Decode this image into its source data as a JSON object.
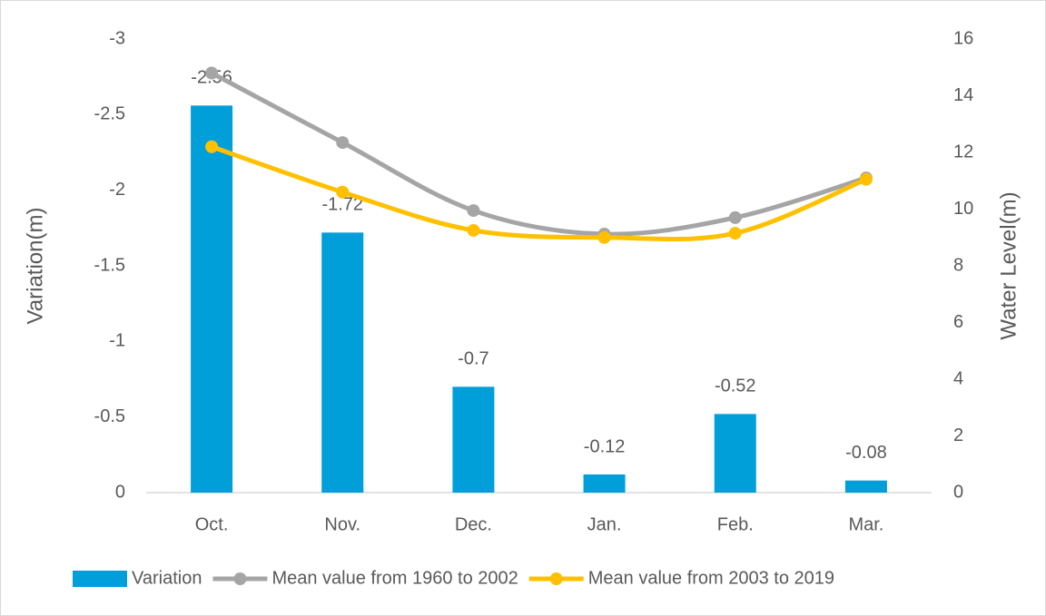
{
  "chart_data": {
    "type": "bar_line",
    "categories": [
      "Oct.",
      "Nov.",
      "Dec.",
      "Jan.",
      "Feb.",
      "Mar."
    ],
    "ylabel": "Variation(m)",
    "y2label": "Water Level(m)",
    "ylim": [
      0,
      -3
    ],
    "yticks": [
      0,
      -0.5,
      -1,
      -1.5,
      -2,
      -2.5,
      -3
    ],
    "y2lim": [
      0,
      16
    ],
    "y2ticks": [
      0,
      2,
      4,
      6,
      8,
      10,
      12,
      14,
      16
    ],
    "series": [
      {
        "name": "Variation",
        "type": "bar",
        "color": "#009fda",
        "values": [
          -2.56,
          -1.72,
          -0.7,
          -0.12,
          -0.52,
          -0.08
        ]
      },
      {
        "name": "Mean value from 1960 to 2002",
        "type": "line",
        "axis": "y2",
        "color": "#a5a5a5",
        "values": [
          14.8,
          12.35,
          9.95,
          9.12,
          9.7,
          11.1
        ]
      },
      {
        "name": "Mean value from 2003 to 2019",
        "type": "line",
        "axis": "y2",
        "color": "#ffc000",
        "values": [
          12.2,
          10.6,
          9.25,
          9.0,
          9.15,
          11.05
        ]
      }
    ],
    "legend": "bottom"
  }
}
